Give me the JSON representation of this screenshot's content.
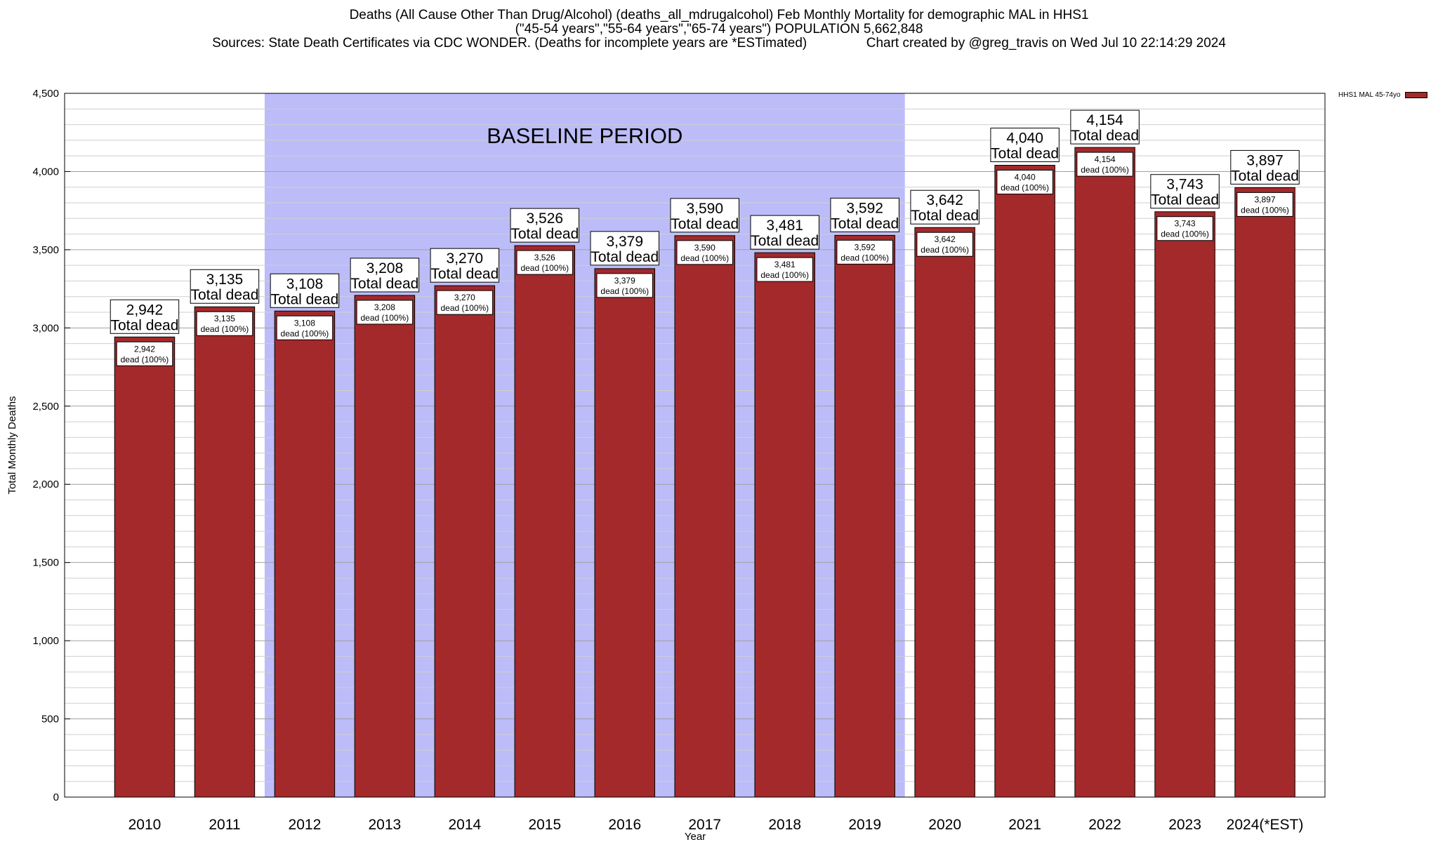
{
  "header": {
    "title": "Deaths (All Cause Other Than Drug/Alcohol) (deaths_all_mdrugalcohol) Feb Monthly Mortality for demographic MAL in HHS1",
    "subtitle": "(\"45-54 years\",\"55-64 years\",\"65-74 years\") POPULATION 5,662,848",
    "sources": "Sources: State Death Certificates via CDC WONDER. (Deaths for incomplete years are *ESTimated)",
    "credit": "Chart created by @greg_travis on Wed Jul 10 22:14:29 2024"
  },
  "legend": {
    "label": "HHS1 MAL 45-74yo"
  },
  "colors": {
    "bar": "#a3292b",
    "baseline": "#bcbcf8"
  },
  "chart_data": {
    "type": "bar",
    "xlabel": "Year",
    "ylabel": "Total Monthly Deaths",
    "ylim": [
      0,
      4500
    ],
    "yticks": [
      0,
      500,
      1000,
      1500,
      2000,
      2500,
      3000,
      3500,
      4000,
      4500
    ],
    "ytick_labels": [
      "0",
      "500",
      "1,000",
      "1,500",
      "2,000",
      "2,500",
      "3,000",
      "3,500",
      "4,000",
      "4,500"
    ],
    "categories": [
      "2010",
      "2011",
      "2012",
      "2013",
      "2014",
      "2015",
      "2016",
      "2017",
      "2018",
      "2019",
      "2020",
      "2021",
      "2022",
      "2023",
      "2024(*EST)"
    ],
    "series": [
      {
        "name": "HHS1 MAL 45-74yo",
        "values": [
          2942,
          3135,
          3108,
          3208,
          3270,
          3526,
          3379,
          3590,
          3481,
          3592,
          3642,
          4040,
          4154,
          3743,
          3897
        ]
      }
    ],
    "value_labels": [
      "2,942",
      "3,135",
      "3,108",
      "3,208",
      "3,270",
      "3,526",
      "3,379",
      "3,590",
      "3,481",
      "3,592",
      "3,642",
      "4,040",
      "4,154",
      "3,743",
      "3,897"
    ],
    "total_label": "Total dead",
    "inner_label": "dead (100%)",
    "grid": true,
    "baseline_period": {
      "label": "BASELINE PERIOD",
      "start": "2012",
      "end": "2019"
    },
    "legend_position": "top-right"
  }
}
